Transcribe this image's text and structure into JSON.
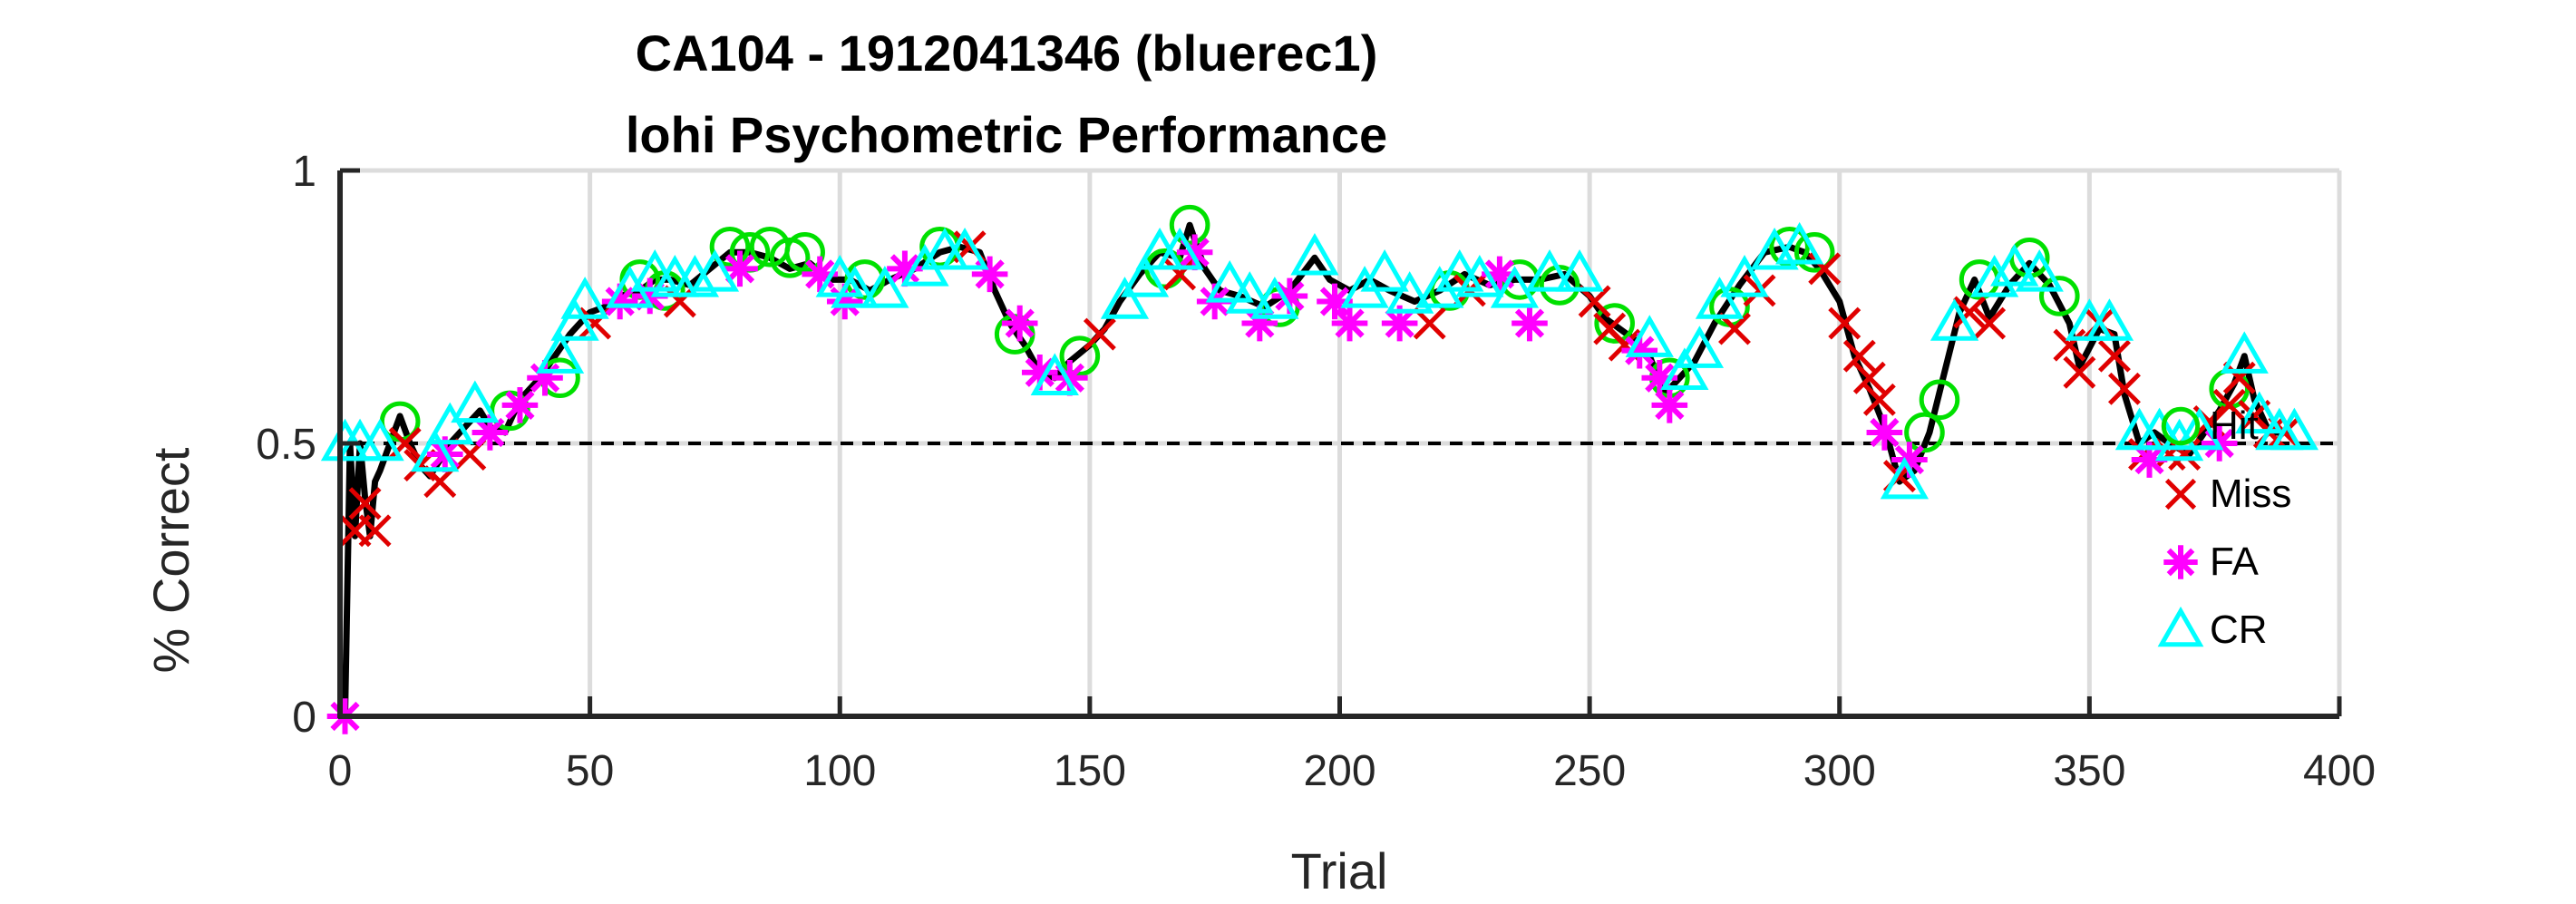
{
  "chart_data": {
    "type": "line",
    "title": "CA104 - 1912041346 (bluerec1)",
    "subtitle": "lohi Psychometric Performance",
    "xlabel": "Trial",
    "ylabel": "% Correct",
    "xlim": [
      0,
      400
    ],
    "ylim": [
      0,
      1
    ],
    "xticks": [
      "0",
      "50",
      "100",
      "150",
      "200",
      "250",
      "300",
      "350",
      "400"
    ],
    "yticks": [
      "0",
      "0.5",
      "1"
    ],
    "grid": true,
    "chance_level": 0.5,
    "legend_position": "right",
    "colors": {
      "Hit": "#00e000",
      "Miss": "#e00000",
      "FA": "#ff00ff",
      "CR": "#00ffff",
      "line": "#000000",
      "chance": "#000000"
    },
    "series": [
      {
        "name": "Hit",
        "marker": "circle"
      },
      {
        "name": "Miss",
        "marker": "x"
      },
      {
        "name": "FA",
        "marker": "asterisk"
      },
      {
        "name": "CR",
        "marker": "triangle"
      }
    ],
    "performance_curve": [
      [
        1,
        0.0
      ],
      [
        2,
        0.5
      ],
      [
        3,
        0.33
      ],
      [
        4,
        0.5
      ],
      [
        5,
        0.4
      ],
      [
        6,
        0.33
      ],
      [
        7,
        0.43
      ],
      [
        8,
        0.45
      ],
      [
        10,
        0.5
      ],
      [
        12,
        0.55
      ],
      [
        14,
        0.5
      ],
      [
        16,
        0.46
      ],
      [
        18,
        0.44
      ],
      [
        20,
        0.47
      ],
      [
        22,
        0.5
      ],
      [
        25,
        0.53
      ],
      [
        28,
        0.56
      ],
      [
        30,
        0.53
      ],
      [
        33,
        0.52
      ],
      [
        36,
        0.58
      ],
      [
        40,
        0.62
      ],
      [
        43,
        0.66
      ],
      [
        46,
        0.7
      ],
      [
        50,
        0.74
      ],
      [
        53,
        0.75
      ],
      [
        56,
        0.77
      ],
      [
        60,
        0.78
      ],
      [
        63,
        0.8
      ],
      [
        66,
        0.8
      ],
      [
        70,
        0.79
      ],
      [
        74,
        0.82
      ],
      [
        78,
        0.85
      ],
      [
        82,
        0.85
      ],
      [
        86,
        0.84
      ],
      [
        90,
        0.82
      ],
      [
        94,
        0.83
      ],
      [
        98,
        0.8
      ],
      [
        102,
        0.8
      ],
      [
        106,
        0.78
      ],
      [
        110,
        0.8
      ],
      [
        115,
        0.82
      ],
      [
        120,
        0.85
      ],
      [
        124,
        0.86
      ],
      [
        128,
        0.85
      ],
      [
        131,
        0.78
      ],
      [
        134,
        0.72
      ],
      [
        137,
        0.68
      ],
      [
        140,
        0.63
      ],
      [
        143,
        0.62
      ],
      [
        146,
        0.65
      ],
      [
        150,
        0.68
      ],
      [
        153,
        0.71
      ],
      [
        156,
        0.76
      ],
      [
        160,
        0.81
      ],
      [
        164,
        0.85
      ],
      [
        168,
        0.84
      ],
      [
        170,
        0.9
      ],
      [
        173,
        0.82
      ],
      [
        176,
        0.78
      ],
      [
        180,
        0.77
      ],
      [
        185,
        0.75
      ],
      [
        190,
        0.78
      ],
      [
        195,
        0.84
      ],
      [
        198,
        0.8
      ],
      [
        202,
        0.78
      ],
      [
        206,
        0.8
      ],
      [
        210,
        0.78
      ],
      [
        215,
        0.76
      ],
      [
        220,
        0.78
      ],
      [
        225,
        0.81
      ],
      [
        230,
        0.79
      ],
      [
        235,
        0.8
      ],
      [
        240,
        0.8
      ],
      [
        245,
        0.81
      ],
      [
        250,
        0.77
      ],
      [
        253,
        0.73
      ],
      [
        256,
        0.71
      ],
      [
        259,
        0.69
      ],
      [
        262,
        0.66
      ],
      [
        265,
        0.59
      ],
      [
        268,
        0.62
      ],
      [
        271,
        0.65
      ],
      [
        275,
        0.72
      ],
      [
        280,
        0.79
      ],
      [
        285,
        0.85
      ],
      [
        290,
        0.86
      ],
      [
        293,
        0.85
      ],
      [
        296,
        0.82
      ],
      [
        300,
        0.76
      ],
      [
        303,
        0.66
      ],
      [
        306,
        0.6
      ],
      [
        309,
        0.53
      ],
      [
        312,
        0.43
      ],
      [
        315,
        0.45
      ],
      [
        318,
        0.52
      ],
      [
        321,
        0.63
      ],
      [
        324,
        0.74
      ],
      [
        327,
        0.8
      ],
      [
        330,
        0.73
      ],
      [
        334,
        0.79
      ],
      [
        338,
        0.83
      ],
      [
        342,
        0.79
      ],
      [
        346,
        0.72
      ],
      [
        348,
        0.64
      ],
      [
        352,
        0.71
      ],
      [
        355,
        0.7
      ],
      [
        357,
        0.59
      ],
      [
        360,
        0.5
      ],
      [
        363,
        0.52
      ],
      [
        366,
        0.5
      ],
      [
        370,
        0.48
      ],
      [
        373,
        0.52
      ],
      [
        376,
        0.56
      ],
      [
        379,
        0.61
      ],
      [
        381,
        0.66
      ],
      [
        383,
        0.58
      ],
      [
        386,
        0.52
      ],
      [
        390,
        0.52
      ]
    ],
    "hit_points": [
      [
        12,
        0.54
      ],
      [
        34,
        0.56
      ],
      [
        44,
        0.62
      ],
      [
        60,
        0.8
      ],
      [
        65,
        0.78
      ],
      [
        78,
        0.86
      ],
      [
        82,
        0.85
      ],
      [
        86,
        0.86
      ],
      [
        90,
        0.84
      ],
      [
        93,
        0.85
      ],
      [
        105,
        0.8
      ],
      [
        120,
        0.86
      ],
      [
        135,
        0.7
      ],
      [
        148,
        0.66
      ],
      [
        165,
        0.82
      ],
      [
        170,
        0.9
      ],
      [
        188,
        0.75
      ],
      [
        222,
        0.78
      ],
      [
        236,
        0.8
      ],
      [
        244,
        0.79
      ],
      [
        255,
        0.72
      ],
      [
        266,
        0.62
      ],
      [
        278,
        0.75
      ],
      [
        290,
        0.86
      ],
      [
        295,
        0.85
      ],
      [
        317,
        0.52
      ],
      [
        320,
        0.58
      ],
      [
        328,
        0.8
      ],
      [
        338,
        0.84
      ],
      [
        344,
        0.77
      ],
      [
        378,
        0.6
      ]
    ],
    "miss_points": [
      [
        3,
        0.34
      ],
      [
        5,
        0.39
      ],
      [
        7,
        0.34
      ],
      [
        13,
        0.5
      ],
      [
        16,
        0.46
      ],
      [
        20,
        0.43
      ],
      [
        26,
        0.48
      ],
      [
        51,
        0.72
      ],
      [
        68,
        0.76
      ],
      [
        126,
        0.86
      ],
      [
        152,
        0.7
      ],
      [
        168,
        0.81
      ],
      [
        218,
        0.72
      ],
      [
        226,
        0.78
      ],
      [
        251,
        0.76
      ],
      [
        254,
        0.71
      ],
      [
        257,
        0.68
      ],
      [
        279,
        0.71
      ],
      [
        284,
        0.78
      ],
      [
        297,
        0.82
      ],
      [
        301,
        0.72
      ],
      [
        304,
        0.66
      ],
      [
        306,
        0.62
      ],
      [
        308,
        0.58
      ],
      [
        312,
        0.44
      ],
      [
        326,
        0.74
      ],
      [
        330,
        0.72
      ],
      [
        346,
        0.68
      ],
      [
        348,
        0.63
      ],
      [
        352,
        0.72
      ],
      [
        355,
        0.66
      ],
      [
        357,
        0.6
      ],
      [
        361,
        0.48
      ],
      [
        366,
        0.48
      ],
      [
        369,
        0.48
      ],
      [
        374,
        0.54
      ],
      [
        378,
        0.57
      ],
      [
        380,
        0.62
      ],
      [
        383,
        0.55
      ],
      [
        386,
        0.52
      ],
      [
        389,
        0.52
      ]
    ],
    "fa_points": [
      [
        1,
        0.0
      ],
      [
        21,
        0.48
      ],
      [
        30,
        0.52
      ],
      [
        36,
        0.57
      ],
      [
        41,
        0.62
      ],
      [
        56,
        0.76
      ],
      [
        62,
        0.77
      ],
      [
        80,
        0.82
      ],
      [
        96,
        0.81
      ],
      [
        101,
        0.76
      ],
      [
        113,
        0.82
      ],
      [
        130,
        0.81
      ],
      [
        136,
        0.72
      ],
      [
        140,
        0.63
      ],
      [
        146,
        0.62
      ],
      [
        171,
        0.85
      ],
      [
        175,
        0.76
      ],
      [
        184,
        0.72
      ],
      [
        190,
        0.77
      ],
      [
        199,
        0.76
      ],
      [
        202,
        0.72
      ],
      [
        212,
        0.72
      ],
      [
        232,
        0.81
      ],
      [
        238,
        0.72
      ],
      [
        260,
        0.67
      ],
      [
        264,
        0.62
      ],
      [
        266,
        0.57
      ],
      [
        309,
        0.52
      ],
      [
        314,
        0.47
      ],
      [
        362,
        0.47
      ],
      [
        376,
        0.5
      ]
    ],
    "cr_points": [
      [
        1,
        0.5
      ],
      [
        4,
        0.5
      ],
      [
        8,
        0.5
      ],
      [
        19,
        0.48
      ],
      [
        22,
        0.53
      ],
      [
        27,
        0.57
      ],
      [
        44,
        0.66
      ],
      [
        47,
        0.72
      ],
      [
        49,
        0.76
      ],
      [
        58,
        0.78
      ],
      [
        63,
        0.81
      ],
      [
        67,
        0.8
      ],
      [
        71,
        0.8
      ],
      [
        75,
        0.81
      ],
      [
        100,
        0.8
      ],
      [
        103,
        0.78
      ],
      [
        109,
        0.78
      ],
      [
        117,
        0.82
      ],
      [
        121,
        0.85
      ],
      [
        125,
        0.85
      ],
      [
        143,
        0.62
      ],
      [
        157,
        0.76
      ],
      [
        161,
        0.8
      ],
      [
        164,
        0.85
      ],
      [
        168,
        0.85
      ],
      [
        178,
        0.79
      ],
      [
        182,
        0.77
      ],
      [
        187,
        0.76
      ],
      [
        195,
        0.84
      ],
      [
        205,
        0.78
      ],
      [
        209,
        0.81
      ],
      [
        214,
        0.77
      ],
      [
        220,
        0.78
      ],
      [
        224,
        0.81
      ],
      [
        228,
        0.8
      ],
      [
        235,
        0.78
      ],
      [
        242,
        0.81
      ],
      [
        248,
        0.81
      ],
      [
        262,
        0.69
      ],
      [
        269,
        0.63
      ],
      [
        272,
        0.67
      ],
      [
        276,
        0.76
      ],
      [
        281,
        0.8
      ],
      [
        287,
        0.85
      ],
      [
        292,
        0.86
      ],
      [
        313,
        0.43
      ],
      [
        323,
        0.72
      ],
      [
        331,
        0.8
      ],
      [
        335,
        0.82
      ],
      [
        340,
        0.81
      ],
      [
        350,
        0.72
      ],
      [
        354,
        0.72
      ],
      [
        360,
        0.52
      ],
      [
        364,
        0.52
      ],
      [
        368,
        0.5
      ],
      [
        372,
        0.52
      ],
      [
        381,
        0.66
      ],
      [
        384,
        0.55
      ],
      [
        388,
        0.52
      ],
      [
        391,
        0.52
      ]
    ]
  }
}
